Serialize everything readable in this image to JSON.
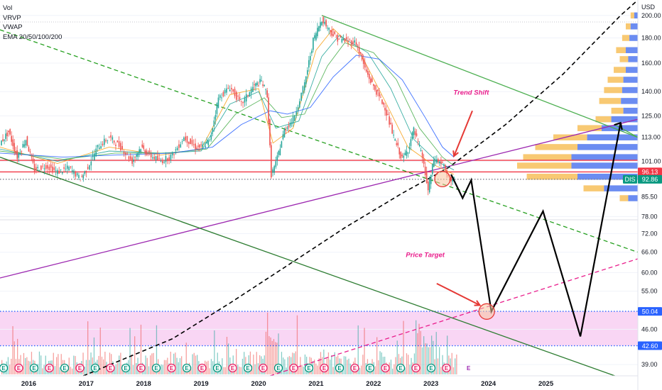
{
  "legend": {
    "items": [
      "Vol",
      "VRVP",
      "VWAP",
      "EMA 20/50/100/200"
    ]
  },
  "chart_data": {
    "type": "line",
    "currency": "USD",
    "y_scale": "log",
    "ylim": [
      37,
      215
    ],
    "y_ticks": [
      "200.00",
      "180.00",
      "160.00",
      "140.00",
      "125.00",
      "113.00",
      "101.00",
      "85.50",
      "78.00",
      "72.00",
      "66.00",
      "60.00",
      "55.00",
      "46.00",
      "39.00"
    ],
    "x_ticks": [
      "2016",
      "2017",
      "2018",
      "2019",
      "2020",
      "2021",
      "2022",
      "2023",
      "2024",
      "2025"
    ],
    "xlim": [
      2015.5,
      2026.6
    ],
    "price_labels": [
      {
        "label": "96.13",
        "value": 96.13,
        "color": "#f23645"
      },
      {
        "label": "DIS",
        "value": 92.86,
        "color": "#089981"
      },
      {
        "label": "92.86",
        "value": 92.86,
        "color": "#089981"
      },
      {
        "label": "50.04",
        "value": 50.04,
        "color": "#2962ff"
      },
      {
        "label": "42.60",
        "value": 42.6,
        "color": "#2962ff"
      }
    ],
    "price_path": [
      [
        2015.5,
        110
      ],
      [
        2015.65,
        116
      ],
      [
        2015.8,
        103
      ],
      [
        2015.95,
        112
      ],
      [
        2016.1,
        97
      ],
      [
        2016.3,
        99
      ],
      [
        2016.5,
        96
      ],
      [
        2016.7,
        98
      ],
      [
        2016.9,
        93
      ],
      [
        2017.0,
        97
      ],
      [
        2017.2,
        108
      ],
      [
        2017.4,
        113
      ],
      [
        2017.6,
        108
      ],
      [
        2017.8,
        101
      ],
      [
        2017.95,
        108
      ],
      [
        2018.1,
        104
      ],
      [
        2018.3,
        101
      ],
      [
        2018.5,
        104
      ],
      [
        2018.7,
        113
      ],
      [
        2018.9,
        108
      ],
      [
        2019.0,
        108
      ],
      [
        2019.15,
        111
      ],
      [
        2019.3,
        136
      ],
      [
        2019.5,
        143
      ],
      [
        2019.7,
        132
      ],
      [
        2019.9,
        143
      ],
      [
        2020.05,
        147
      ],
      [
        2020.15,
        138
      ],
      [
        2020.22,
        95
      ],
      [
        2020.3,
        100
      ],
      [
        2020.45,
        117
      ],
      [
        2020.6,
        123
      ],
      [
        2020.8,
        145
      ],
      [
        2020.95,
        178
      ],
      [
        2021.1,
        197
      ],
      [
        2021.2,
        189
      ],
      [
        2021.35,
        180
      ],
      [
        2021.5,
        178
      ],
      [
        2021.7,
        176
      ],
      [
        2021.85,
        156
      ],
      [
        2021.95,
        147
      ],
      [
        2022.05,
        140
      ],
      [
        2022.2,
        130
      ],
      [
        2022.35,
        113
      ],
      [
        2022.5,
        102
      ],
      [
        2022.6,
        107
      ],
      [
        2022.7,
        117
      ],
      [
        2022.85,
        103
      ],
      [
        2022.95,
        88
      ],
      [
        2023.05,
        102
      ],
      [
        2023.2,
        100
      ],
      [
        2023.3,
        93
      ],
      [
        2023.4,
        92.86
      ]
    ],
    "ema_series": [
      {
        "color": "#f7a21b",
        "values": [
          [
            2015.5,
            108
          ],
          [
            2016.5,
            100
          ],
          [
            2017.4,
            108
          ],
          [
            2018.3,
            104
          ],
          [
            2019.0,
            107
          ],
          [
            2019.5,
            138
          ],
          [
            2020.0,
            142
          ],
          [
            2020.25,
            110
          ],
          [
            2020.6,
            118
          ],
          [
            2021.0,
            170
          ],
          [
            2021.3,
            188
          ],
          [
            2021.8,
            165
          ],
          [
            2022.2,
            134
          ],
          [
            2022.6,
            108
          ],
          [
            2023.0,
            100
          ],
          [
            2023.4,
            95
          ]
        ]
      },
      {
        "color": "#26a69a",
        "values": [
          [
            2015.5,
            107
          ],
          [
            2016.5,
            101
          ],
          [
            2017.4,
            106
          ],
          [
            2018.3,
            105
          ],
          [
            2019.0,
            106
          ],
          [
            2019.5,
            132
          ],
          [
            2020.0,
            140
          ],
          [
            2020.3,
            118
          ],
          [
            2020.7,
            122
          ],
          [
            2021.1,
            165
          ],
          [
            2021.4,
            182
          ],
          [
            2021.9,
            168
          ],
          [
            2022.3,
            142
          ],
          [
            2022.7,
            112
          ],
          [
            2023.1,
            101
          ],
          [
            2023.4,
            97
          ]
        ]
      },
      {
        "color": "#4caf50",
        "values": [
          [
            2015.5,
            106
          ],
          [
            2016.6,
            102
          ],
          [
            2017.5,
            105
          ],
          [
            2018.4,
            105
          ],
          [
            2019.1,
            107
          ],
          [
            2019.6,
            126
          ],
          [
            2020.1,
            136
          ],
          [
            2020.4,
            124
          ],
          [
            2020.8,
            126
          ],
          [
            2021.2,
            158
          ],
          [
            2021.5,
            176
          ],
          [
            2022.0,
            168
          ],
          [
            2022.4,
            148
          ],
          [
            2022.8,
            118
          ],
          [
            2023.2,
            103
          ],
          [
            2023.4,
            99
          ]
        ]
      },
      {
        "color": "#2962ff",
        "values": [
          [
            2015.5,
            105
          ],
          [
            2016.6,
            103
          ],
          [
            2017.5,
            104
          ],
          [
            2018.5,
            105
          ],
          [
            2019.2,
            108
          ],
          [
            2019.7,
            120
          ],
          [
            2020.2,
            128
          ],
          [
            2020.5,
            126
          ],
          [
            2020.9,
            130
          ],
          [
            2021.3,
            150
          ],
          [
            2021.7,
            166
          ],
          [
            2022.1,
            163
          ],
          [
            2022.5,
            148
          ],
          [
            2022.9,
            124
          ],
          [
            2023.2,
            108
          ],
          [
            2023.4,
            103
          ]
        ]
      }
    ],
    "horizontal_levels": [
      {
        "value": 101.5,
        "color": "#f23645",
        "style": "solid"
      },
      {
        "value": 96.13,
        "color": "#f23645",
        "style": "solid"
      },
      {
        "value": 92.86,
        "color": "#787b86",
        "style": "dotted"
      },
      {
        "value": 50.04,
        "color": "#2962ff",
        "style": "dotted"
      },
      {
        "value": 42.6,
        "color": "#2962ff",
        "style": "dotted"
      }
    ],
    "trendlines": [
      {
        "name": "upper-green",
        "color": "#4caf50",
        "style": "solid",
        "from": [
          2021.1,
          200
        ],
        "to": [
          2026.6,
          113
        ]
      },
      {
        "name": "green-dashed",
        "color": "#26a020",
        "style": "dashed",
        "from": [
          2015.5,
          187
        ],
        "to": [
          2026.6,
          66
        ]
      },
      {
        "name": "purple",
        "color": "#9c27b0",
        "style": "solid",
        "from": [
          2015.5,
          58.5
        ],
        "to": [
          2026.6,
          123
        ]
      },
      {
        "name": "magenta-dashed",
        "color": "#e91e8c",
        "style": "dashed",
        "from": [
          2020.2,
          37
        ],
        "to": [
          2026.6,
          64
        ]
      },
      {
        "name": "lower-green",
        "color": "#2e7d32",
        "style": "solid",
        "from": [
          2015.5,
          103
        ],
        "to": [
          2026.2,
          37
        ]
      },
      {
        "name": "upper-green-ext",
        "color": "#4caf50",
        "style": "solid",
        "from": [
          2026.2,
          120
        ],
        "to": [
          2026.6,
          113
        ]
      }
    ],
    "curve_dashed": {
      "color": "#000000",
      "points": [
        [
          2016.95,
          37
        ],
        [
          2018.5,
          44
        ],
        [
          2019.5,
          52
        ],
        [
          2020.5,
          62
        ],
        [
          2021.5,
          74
        ],
        [
          2022.5,
          87
        ],
        [
          2023.3,
          98
        ],
        [
          2024.3,
          120
        ],
        [
          2025.3,
          152
        ],
        [
          2026.3,
          200
        ],
        [
          2026.6,
          215
        ]
      ]
    },
    "projection_path": [
      [
        2023.35,
        95
      ],
      [
        2023.55,
        85
      ],
      [
        2023.7,
        92.5
      ],
      [
        2024.05,
        50
      ],
      [
        2024.95,
        80
      ],
      [
        2025.6,
        44.5
      ],
      [
        2026.3,
        121
      ]
    ],
    "highlight_zone": {
      "from": 42.6,
      "to": 50.04,
      "color": "#f7c8f0"
    },
    "circles": [
      {
        "x": 2023.2,
        "y": 93,
        "label": "current"
      },
      {
        "x": 2023.97,
        "y": 50,
        "label": "target"
      }
    ],
    "annotations": [
      {
        "text": "Trend Shift",
        "x": 2023.7,
        "y": 138
      },
      {
        "text": "Price Target",
        "x": 2022.9,
        "y": 64.5
      }
    ],
    "volume_profile_rows": [
      [
        200,
        0.06,
        0.03
      ],
      [
        190,
        0.1,
        0.06
      ],
      [
        180,
        0.13,
        0.07
      ],
      [
        170,
        0.18,
        0.1
      ],
      [
        163,
        0.15,
        0.08
      ],
      [
        155,
        0.2,
        0.1
      ],
      [
        148,
        0.25,
        0.12
      ],
      [
        141,
        0.28,
        0.13
      ],
      [
        134,
        0.32,
        0.14
      ],
      [
        128,
        0.22,
        0.12
      ],
      [
        123,
        0.35,
        0.22
      ],
      [
        118,
        0.5,
        0.3
      ],
      [
        113,
        0.7,
        0.42
      ],
      [
        108,
        0.85,
        0.5
      ],
      [
        103,
        0.95,
        0.55
      ],
      [
        99,
        1.0,
        0.55
      ],
      [
        94,
        0.92,
        0.5
      ],
      [
        89,
        0.45,
        0.28
      ],
      [
        85,
        0.15,
        0.08
      ]
    ],
    "events": {
      "earnings_label": "E",
      "dividend_label": "E"
    }
  }
}
